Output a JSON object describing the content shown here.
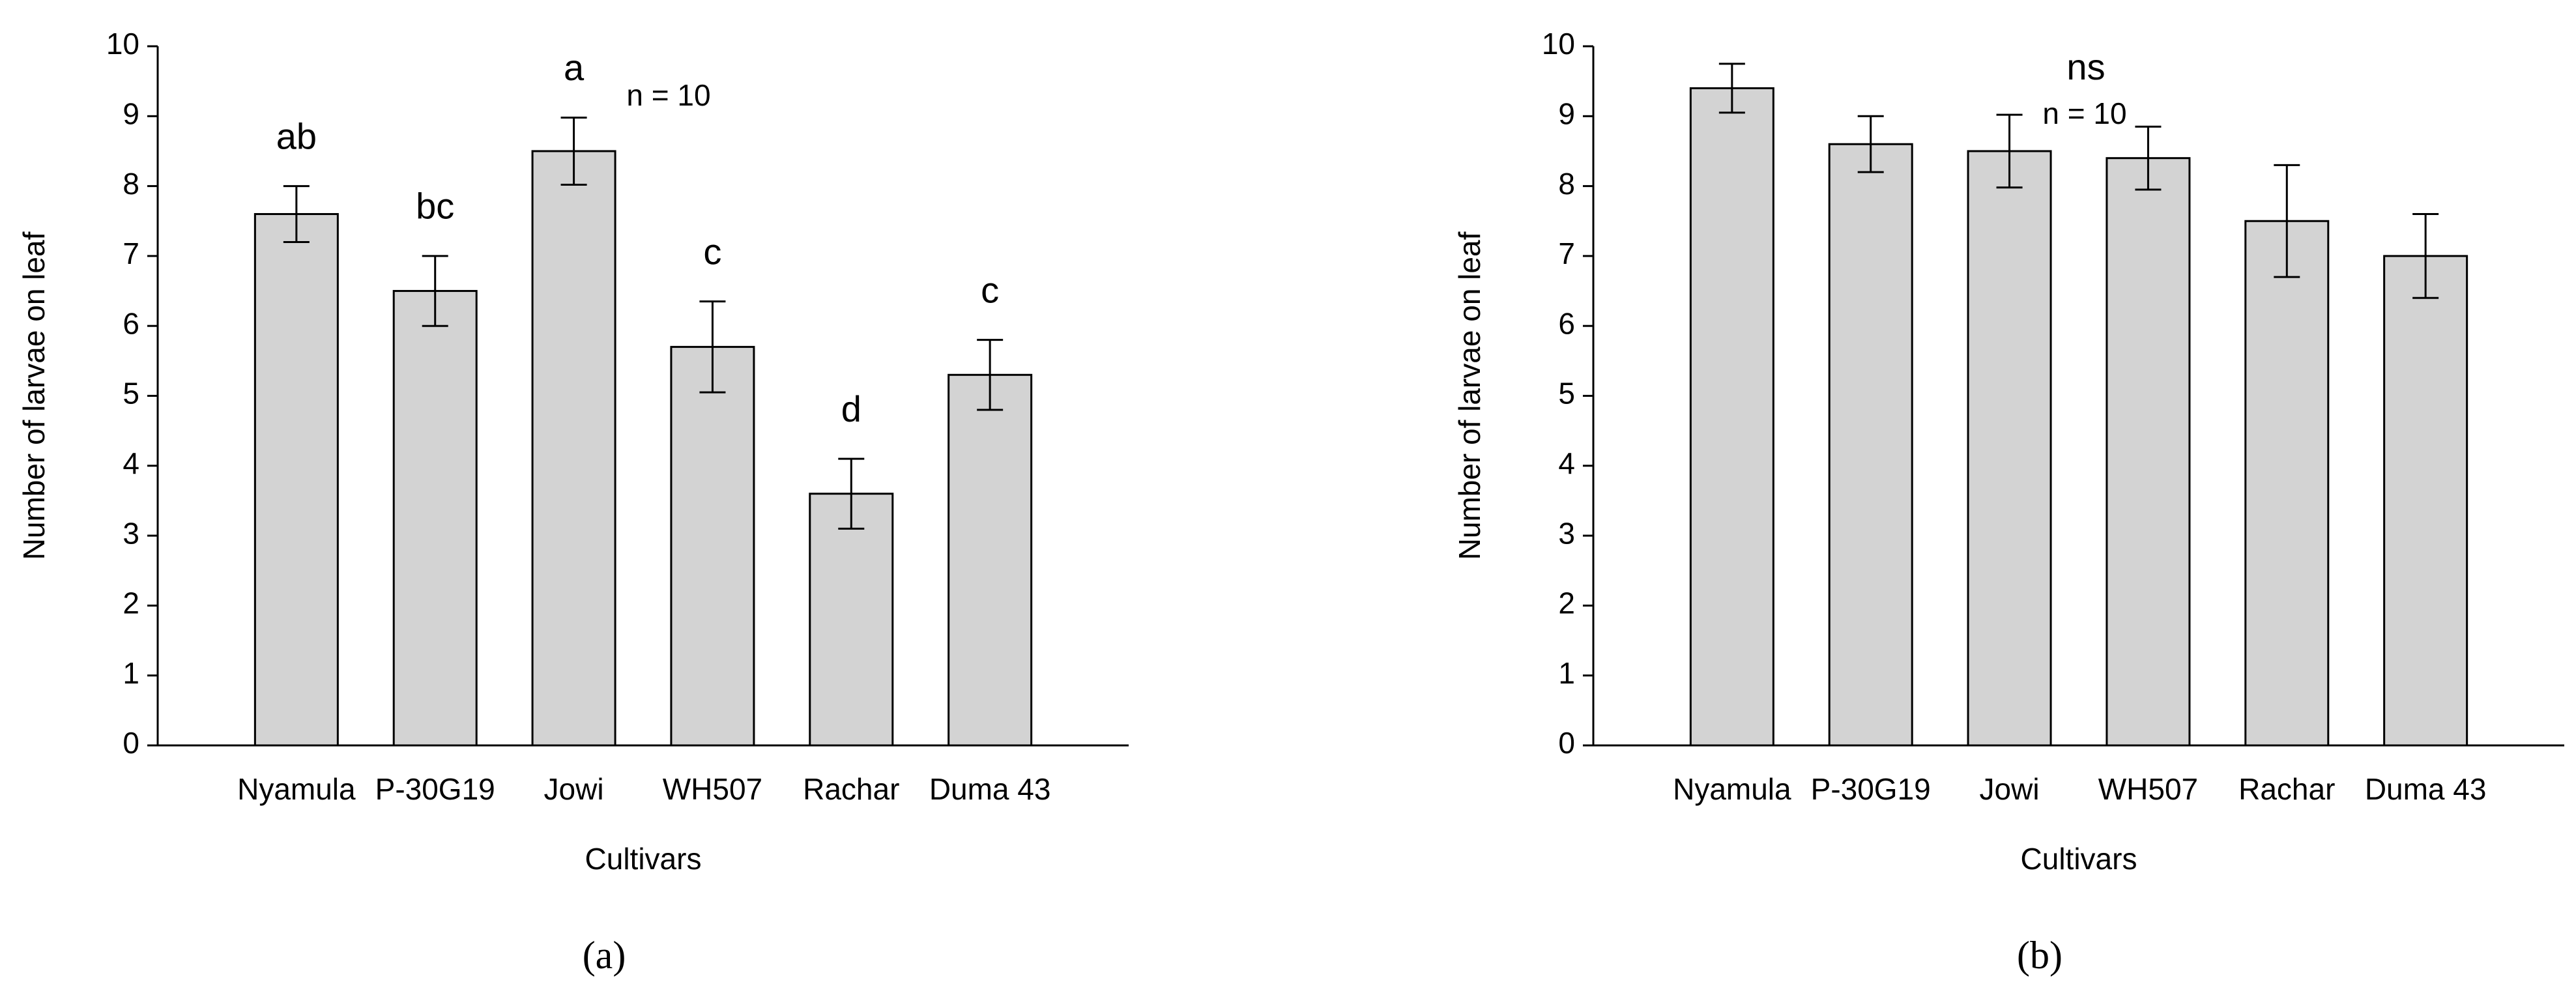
{
  "chart_data": [
    {
      "type": "bar",
      "panel_label": "(a)",
      "xlabel": "Cultivars",
      "ylabel": "Number of larvae on leaf",
      "categories": [
        "Nyamula",
        "P-30G19",
        "Jowi",
        "WH507",
        "Rachar",
        "Duma 43"
      ],
      "values": [
        7.6,
        6.5,
        8.5,
        5.7,
        3.6,
        5.3
      ],
      "errors": [
        0.4,
        0.5,
        0.48,
        0.65,
        0.5,
        0.5
      ],
      "letters": [
        "ab",
        "bc",
        "a",
        "c",
        "d",
        "c"
      ],
      "annotations": [
        "n = 10"
      ],
      "color": "#d3d3d3",
      "ylim": [
        0,
        10
      ],
      "yticks": [
        0,
        1,
        2,
        3,
        4,
        5,
        6,
        7,
        8,
        9,
        10
      ],
      "grid": false
    },
    {
      "type": "bar",
      "panel_label": "(b)",
      "xlabel": "Cultivars",
      "ylabel": "Number of larvae on leaf",
      "categories": [
        "Nyamula",
        "P-30G19",
        "Jowi",
        "WH507",
        "Rachar",
        "Duma 43"
      ],
      "values": [
        9.4,
        8.6,
        8.5,
        8.4,
        7.5,
        7.0
      ],
      "errors": [
        0.35,
        0.4,
        0.52,
        0.45,
        0.8,
        0.6
      ],
      "annotations": [
        "ns",
        "n = 10"
      ],
      "color": "#d3d3d3",
      "ylim": [
        0,
        10
      ],
      "yticks": [
        0,
        1,
        2,
        3,
        4,
        5,
        6,
        7,
        8,
        9,
        10
      ],
      "grid": false
    }
  ]
}
